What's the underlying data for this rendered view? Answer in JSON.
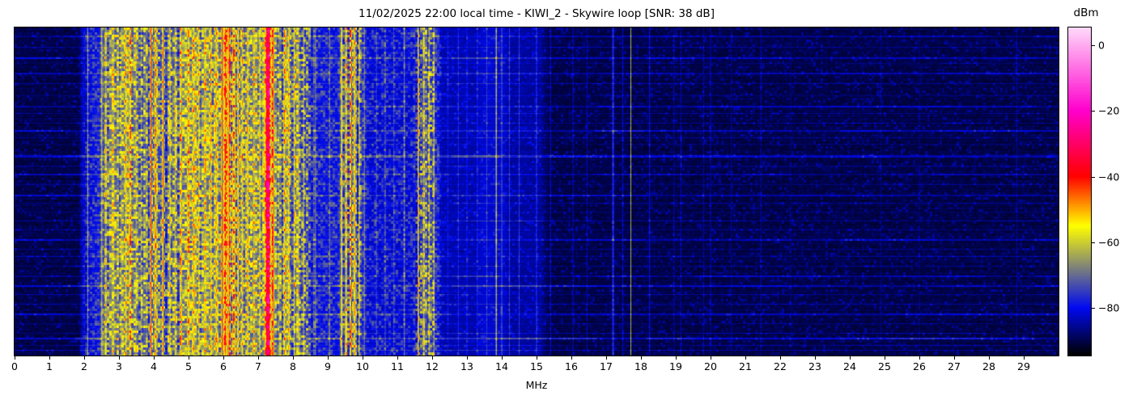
{
  "title": "11/02/2025 22:00 local time - KIWI_2 - Skywire loop [SNR: 38 dB]",
  "x_axis": {
    "label": "MHz",
    "tick_labels": [
      "0",
      "1",
      "2",
      "3",
      "4",
      "5",
      "6",
      "7",
      "8",
      "9",
      "10",
      "11",
      "12",
      "13",
      "14",
      "15",
      "16",
      "17",
      "18",
      "19",
      "20",
      "21",
      "22",
      "23",
      "24",
      "25",
      "26",
      "27",
      "28",
      "29"
    ],
    "tick_values": [
      0,
      1,
      2,
      3,
      4,
      5,
      6,
      7,
      8,
      9,
      10,
      11,
      12,
      13,
      14,
      15,
      16,
      17,
      18,
      19,
      20,
      21,
      22,
      23,
      24,
      25,
      26,
      27,
      28,
      29
    ],
    "range_mhz": [
      0,
      30
    ]
  },
  "colorbar": {
    "label": "dBm",
    "tick_labels": [
      "0",
      "−20",
      "−40",
      "−60",
      "−80"
    ],
    "tick_values": [
      0,
      -20,
      -40,
      -60,
      -80
    ],
    "vmin": -94.4,
    "vmax": 5.4,
    "gradient_stops": [
      [
        -94.4,
        [
          0,
          0,
          0
        ]
      ],
      [
        -80.0,
        [
          0,
          10,
          240
        ]
      ],
      [
        -55.0,
        [
          255,
          255,
          0
        ]
      ],
      [
        -40.0,
        [
          255,
          0,
          0
        ]
      ],
      [
        -20.0,
        [
          255,
          0,
          205
        ]
      ],
      [
        5.4,
        [
          255,
          219,
          250
        ]
      ]
    ]
  },
  "chart_data": {
    "type": "heatmap",
    "title": "11/02/2025 22:00 local time - KIWI_2 - Skywire loop [SNR: 38 dB]",
    "xlabel": "MHz",
    "value_unit": "dBm",
    "snr_db": 38,
    "x_range_mhz": [
      0,
      30
    ],
    "value_range_dbm": [
      -94.4,
      5.4
    ],
    "orientation": "spectrogram: frequency on x, time on y, power mapped to color",
    "noise_floor_dbm": [
      [
        0.0,
        -91
      ],
      [
        1.85,
        -91
      ],
      [
        1.98,
        -83
      ],
      [
        2.1,
        -80
      ],
      [
        2.45,
        -77
      ],
      [
        2.7,
        -68
      ],
      [
        8.35,
        -68
      ],
      [
        8.7,
        -78
      ],
      [
        9.3,
        -78
      ],
      [
        9.45,
        -71
      ],
      [
        9.95,
        -71
      ],
      [
        10.15,
        -80
      ],
      [
        11.45,
        -80
      ],
      [
        11.55,
        -72
      ],
      [
        12.05,
        -72
      ],
      [
        12.3,
        -85
      ],
      [
        13.25,
        -85
      ],
      [
        13.45,
        -83
      ],
      [
        14.05,
        -83
      ],
      [
        14.2,
        -86
      ],
      [
        15.1,
        -86
      ],
      [
        15.35,
        -91
      ],
      [
        30.0,
        -91
      ]
    ],
    "signal_lines_mhz_peakdbm_width": [
      [
        2.1,
        -64,
        0.01
      ],
      [
        2.5,
        -62,
        0.018
      ],
      [
        2.62,
        -60,
        0.018
      ],
      [
        2.88,
        -63,
        0.018
      ],
      [
        3.05,
        -60,
        0.018
      ],
      [
        3.2,
        -58,
        0.018
      ],
      [
        3.33,
        -56,
        0.018
      ],
      [
        3.5,
        -62,
        0.018
      ],
      [
        3.65,
        -58,
        0.018
      ],
      [
        3.8,
        -56,
        0.018
      ],
      [
        3.91,
        -37,
        0.012
      ],
      [
        4.05,
        -52,
        0.018
      ],
      [
        4.26,
        -45,
        0.015
      ],
      [
        4.47,
        -58,
        0.018
      ],
      [
        4.62,
        -60,
        0.018
      ],
      [
        4.77,
        -55,
        0.018
      ],
      [
        5.0,
        -57,
        0.022
      ],
      [
        5.15,
        -60,
        0.018
      ],
      [
        5.3,
        -58,
        0.018
      ],
      [
        5.48,
        -60,
        0.018
      ],
      [
        5.65,
        -57,
        0.018
      ],
      [
        5.8,
        -58,
        0.018
      ],
      [
        5.96,
        -42,
        0.014
      ],
      [
        6.07,
        -47,
        0.035
      ],
      [
        6.18,
        -45,
        0.018
      ],
      [
        6.3,
        -47,
        0.03
      ],
      [
        6.42,
        -49,
        0.02
      ],
      [
        6.55,
        -58,
        0.018
      ],
      [
        6.7,
        -57,
        0.018
      ],
      [
        6.88,
        -55,
        0.018
      ],
      [
        7.05,
        -58,
        0.018
      ],
      [
        7.29,
        -29,
        0.055
      ],
      [
        7.42,
        -44,
        0.018
      ],
      [
        7.58,
        -58,
        0.018
      ],
      [
        7.74,
        -54,
        0.018
      ],
      [
        7.89,
        -56,
        0.018
      ],
      [
        8.04,
        -57,
        0.018
      ],
      [
        8.18,
        -60,
        0.018
      ],
      [
        8.31,
        -58,
        0.018
      ],
      [
        8.65,
        -68,
        0.01
      ],
      [
        9.05,
        -67,
        0.01
      ],
      [
        9.4,
        -60,
        0.018
      ],
      [
        9.53,
        -58,
        0.018
      ],
      [
        9.65,
        -40,
        0.013
      ],
      [
        9.77,
        -56,
        0.018
      ],
      [
        9.9,
        -54,
        0.015
      ],
      [
        10.05,
        -66,
        0.01
      ],
      [
        10.4,
        -74,
        0.015
      ],
      [
        10.65,
        -72,
        0.015
      ],
      [
        10.9,
        -74,
        0.015
      ],
      [
        11.2,
        -68,
        0.015
      ],
      [
        11.6,
        -44,
        0.012
      ],
      [
        11.76,
        -56,
        0.018
      ],
      [
        11.91,
        -54,
        0.015
      ],
      [
        12.05,
        -60,
        0.015
      ],
      [
        12.2,
        -78,
        0.012
      ],
      [
        12.45,
        -80,
        0.012
      ],
      [
        12.75,
        -78,
        0.012
      ],
      [
        13.0,
        -79,
        0.012
      ],
      [
        13.3,
        -78,
        0.012
      ],
      [
        13.57,
        -76,
        0.012
      ],
      [
        13.84,
        -56,
        0.01
      ],
      [
        14.0,
        -66,
        0.008
      ],
      [
        14.22,
        -77,
        0.012
      ],
      [
        14.5,
        -77,
        0.012
      ],
      [
        15.0,
        -76,
        0.012
      ],
      [
        15.4,
        -84,
        0.012
      ],
      [
        16.05,
        -85,
        0.012
      ],
      [
        16.45,
        -86,
        0.012
      ],
      [
        17.2,
        -77,
        0.02
      ],
      [
        17.48,
        -84,
        0.012
      ],
      [
        17.71,
        -64,
        0.007
      ],
      [
        18.25,
        -82,
        0.012
      ],
      [
        18.95,
        -85,
        0.01
      ],
      [
        19.15,
        -85,
        0.01
      ],
      [
        19.8,
        -86,
        0.01
      ],
      [
        20.0,
        -84,
        0.01
      ],
      [
        20.6,
        -87,
        0.01
      ],
      [
        21.45,
        -86,
        0.01
      ],
      [
        22.3,
        -88,
        0.01
      ],
      [
        24.9,
        -88,
        0.01
      ],
      [
        26.0,
        -88,
        0.01
      ],
      [
        28.8,
        -87,
        0.01
      ]
    ],
    "noise_streaks_rowfrac_ampdb_height": [
      [
        0.025,
        5,
        2
      ],
      [
        0.059,
        4,
        1
      ],
      [
        0.091,
        7,
        2
      ],
      [
        0.108,
        3,
        1
      ],
      [
        0.138,
        5,
        2
      ],
      [
        0.17,
        4,
        1
      ],
      [
        0.207,
        3,
        1
      ],
      [
        0.239,
        6,
        2
      ],
      [
        0.261,
        4,
        1
      ],
      [
        0.291,
        5,
        1
      ],
      [
        0.313,
        8,
        2
      ],
      [
        0.335,
        4,
        1
      ],
      [
        0.355,
        3,
        1
      ],
      [
        0.389,
        9,
        3
      ],
      [
        0.421,
        4,
        1
      ],
      [
        0.448,
        5,
        2
      ],
      [
        0.478,
        3,
        1
      ],
      [
        0.51,
        6,
        2
      ],
      [
        0.537,
        4,
        1
      ],
      [
        0.564,
        3,
        1
      ],
      [
        0.589,
        5,
        1
      ],
      [
        0.618,
        4,
        1
      ],
      [
        0.648,
        6,
        2
      ],
      [
        0.677,
        3,
        1
      ],
      [
        0.699,
        5,
        1
      ],
      [
        0.729,
        4,
        1
      ],
      [
        0.758,
        6,
        2
      ],
      [
        0.788,
        8,
        2
      ],
      [
        0.815,
        4,
        1
      ],
      [
        0.845,
        5,
        1
      ],
      [
        0.874,
        6,
        2
      ],
      [
        0.904,
        4,
        1
      ],
      [
        0.933,
        5,
        1
      ],
      [
        0.948,
        9,
        2
      ],
      [
        0.97,
        5,
        1
      ],
      [
        0.985,
        6,
        1
      ]
    ]
  }
}
